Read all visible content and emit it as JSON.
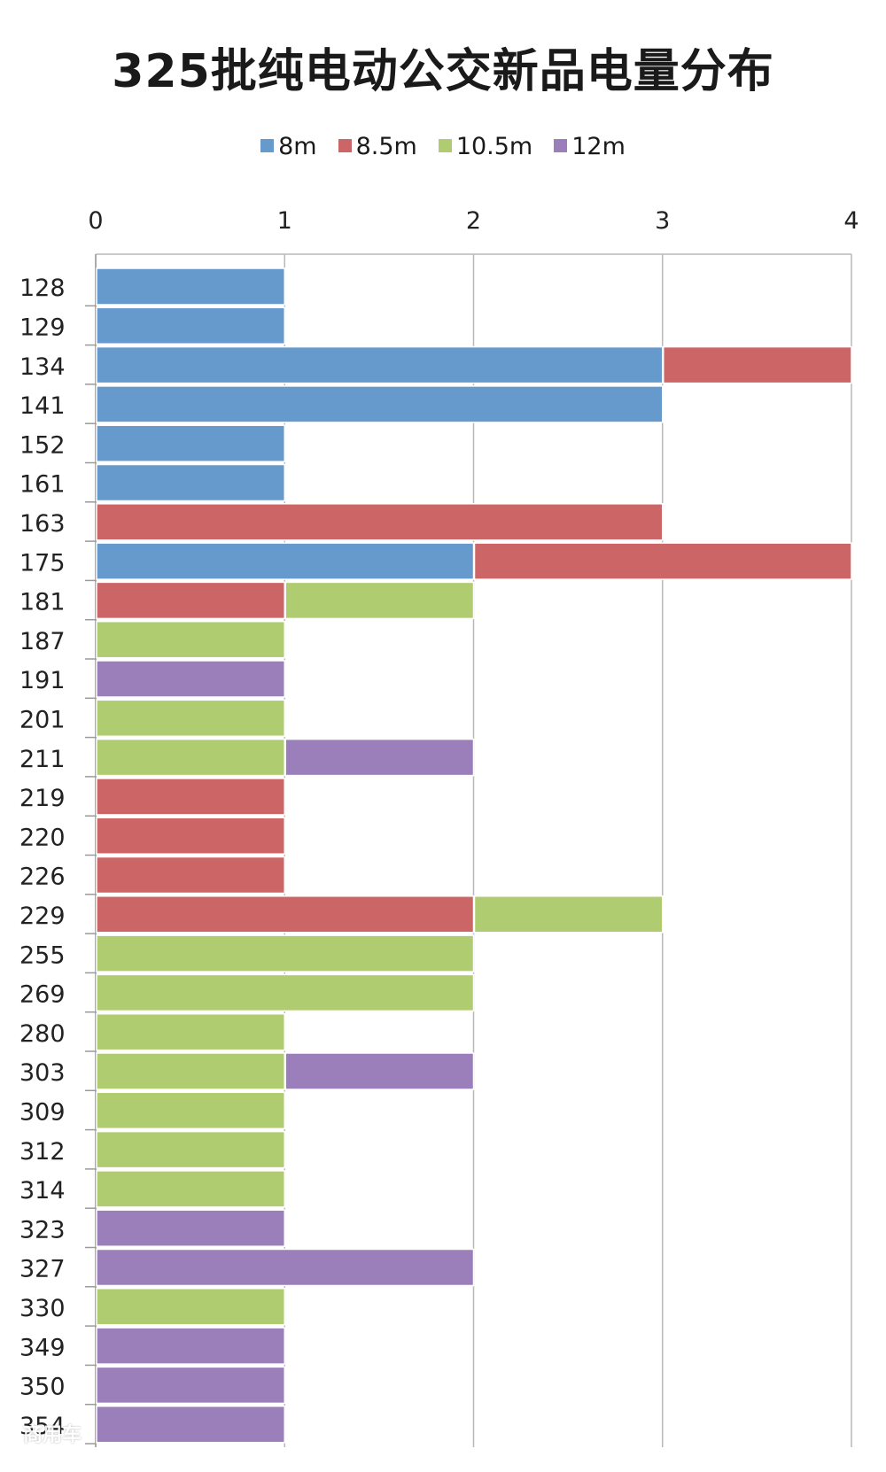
{
  "chart_data": {
    "type": "bar",
    "orientation": "horizontal",
    "stacked": true,
    "title": "325批纯电动公交新品电量分布",
    "xlabel": "",
    "ylabel": "",
    "xlim": [
      0,
      4
    ],
    "x_ticks": [
      0,
      1,
      2,
      3,
      4
    ],
    "grid": true,
    "legend_position": "top",
    "categories": [
      "128",
      "129",
      "134",
      "141",
      "152",
      "161",
      "163",
      "175",
      "181",
      "187",
      "191",
      "201",
      "211",
      "219",
      "220",
      "226",
      "229",
      "255",
      "269",
      "280",
      "303",
      "309",
      "312",
      "314",
      "323",
      "327",
      "330",
      "349",
      "350",
      "354"
    ],
    "series": [
      {
        "name": "8m",
        "color": "#6699cc",
        "values": [
          1,
          1,
          3,
          3,
          1,
          1,
          0,
          2,
          0,
          0,
          0,
          0,
          0,
          0,
          0,
          0,
          0,
          0,
          0,
          0,
          0,
          0,
          0,
          0,
          0,
          0,
          0,
          0,
          0,
          0
        ]
      },
      {
        "name": "8.5m",
        "color": "#cc6666",
        "values": [
          0,
          0,
          1,
          0,
          0,
          0,
          3,
          2,
          1,
          0,
          0,
          0,
          0,
          1,
          1,
          1,
          2,
          0,
          0,
          0,
          0,
          0,
          0,
          0,
          0,
          0,
          0,
          0,
          0,
          0
        ]
      },
      {
        "name": "10.5m",
        "color": "#b0cc70",
        "values": [
          0,
          0,
          0,
          0,
          0,
          0,
          0,
          0,
          1,
          1,
          0,
          1,
          1,
          0,
          0,
          0,
          1,
          2,
          2,
          1,
          1,
          1,
          1,
          1,
          0,
          0,
          1,
          0,
          0,
          0
        ]
      },
      {
        "name": "12m",
        "color": "#9b7fbb",
        "values": [
          0,
          0,
          0,
          0,
          0,
          0,
          0,
          0,
          0,
          0,
          1,
          0,
          1,
          0,
          0,
          0,
          0,
          0,
          0,
          0,
          1,
          0,
          0,
          0,
          1,
          2,
          0,
          1,
          1,
          1
        ]
      }
    ]
  },
  "watermark": "商用车"
}
